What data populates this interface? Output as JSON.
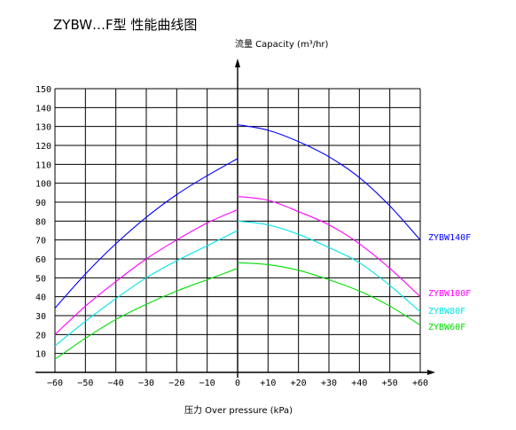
{
  "chart_data": {
    "type": "line",
    "title": "ZYBW…F型 性能曲线图",
    "ylabel": "流量 Capacity (m³/hr)",
    "xlabel": "压力 Over pressure (kPa)",
    "xlim": [
      -60,
      60
    ],
    "ylim": [
      0,
      150
    ],
    "x_ticks": [
      -60,
      -50,
      -40,
      -30,
      -20,
      -10,
      0,
      10,
      20,
      30,
      40,
      50,
      60
    ],
    "x_tick_labels": [
      "−60",
      "−50",
      "−40",
      "−30",
      "−20",
      "−10",
      "0",
      "+10",
      "+20",
      "+30",
      "+40",
      "+50",
      "+60"
    ],
    "y_ticks": [
      10,
      20,
      30,
      40,
      50,
      60,
      70,
      80,
      90,
      100,
      110,
      120,
      130,
      140,
      150
    ],
    "grid": true,
    "legend": "right",
    "series": [
      {
        "name": "ZYBW140F",
        "color": "#0000ff",
        "negative": [
          [
            -60,
            34
          ],
          [
            -50,
            52
          ],
          [
            -40,
            68
          ],
          [
            -30,
            82
          ],
          [
            -20,
            94
          ],
          [
            -10,
            104
          ],
          [
            0,
            113
          ]
        ],
        "positive": [
          [
            0,
            131
          ],
          [
            10,
            128
          ],
          [
            20,
            122
          ],
          [
            30,
            114
          ],
          [
            40,
            103
          ],
          [
            50,
            88
          ],
          [
            60,
            70
          ]
        ]
      },
      {
        "name": "ZYBW100F",
        "color": "#ff00ff",
        "negative": [
          [
            -60,
            20
          ],
          [
            -50,
            35
          ],
          [
            -40,
            48
          ],
          [
            -30,
            60
          ],
          [
            -20,
            70
          ],
          [
            -10,
            79
          ],
          [
            0,
            86
          ]
        ],
        "positive": [
          [
            0,
            93
          ],
          [
            10,
            91
          ],
          [
            20,
            85
          ],
          [
            30,
            78
          ],
          [
            40,
            68
          ],
          [
            50,
            55
          ],
          [
            60,
            40
          ]
        ]
      },
      {
        "name": "ZYBW80F",
        "color": "#00e5e5",
        "negative": [
          [
            -60,
            14
          ],
          [
            -50,
            27
          ],
          [
            -40,
            39
          ],
          [
            -30,
            50
          ],
          [
            -20,
            59
          ],
          [
            -10,
            67
          ],
          [
            0,
            75
          ]
        ],
        "positive": [
          [
            0,
            80
          ],
          [
            10,
            78
          ],
          [
            20,
            73
          ],
          [
            30,
            66
          ],
          [
            40,
            58
          ],
          [
            50,
            46
          ],
          [
            60,
            32
          ]
        ]
      },
      {
        "name": "ZYBW60F",
        "color": "#00dd00",
        "negative": [
          [
            -60,
            7
          ],
          [
            -50,
            18
          ],
          [
            -40,
            28
          ],
          [
            -30,
            36
          ],
          [
            -20,
            43
          ],
          [
            -10,
            49
          ],
          [
            0,
            55
          ]
        ],
        "positive": [
          [
            0,
            58
          ],
          [
            10,
            57
          ],
          [
            20,
            54
          ],
          [
            30,
            49
          ],
          [
            40,
            43
          ],
          [
            50,
            35
          ],
          [
            60,
            25
          ]
        ]
      }
    ]
  }
}
